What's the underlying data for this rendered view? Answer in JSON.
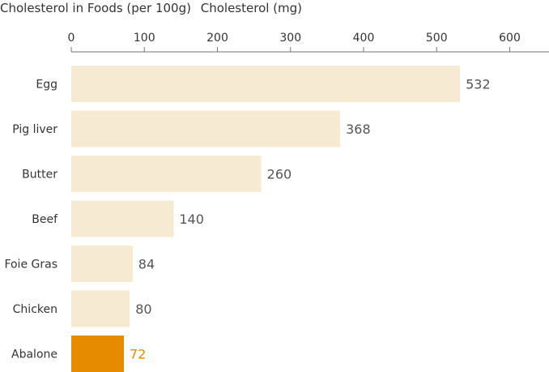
{
  "chart_data": {
    "type": "bar",
    "orientation": "horizontal",
    "title": "Cholesterol in Foods (per 100g)",
    "xlabel": "Cholesterol (mg)",
    "ylabel": "",
    "xlim": [
      0,
      650
    ],
    "xticks": [
      0,
      100,
      200,
      300,
      400,
      500,
      600
    ],
    "categories": [
      "Egg",
      "Pig liver",
      "Butter",
      "Beef",
      "Foie Gras",
      "Chicken",
      "Abalone"
    ],
    "values": [
      532,
      368,
      260,
      140,
      84,
      80,
      72
    ],
    "highlight_index": 6,
    "grid": false,
    "legend": "none",
    "colors": {
      "bar": "#f7ead2",
      "highlight": "#e68a00",
      "value_text": "#555555",
      "highlight_text": "#e68a00",
      "axis": "#777777"
    }
  }
}
